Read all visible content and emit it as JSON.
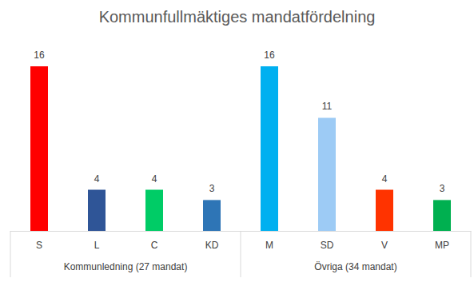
{
  "chart_data": {
    "type": "bar",
    "title": "Kommunfullmäktiges mandatfördelning",
    "categories": [
      "S",
      "L",
      "C",
      "KD",
      "M",
      "SD",
      "V",
      "MP"
    ],
    "values": [
      16,
      4,
      4,
      3,
      16,
      11,
      4,
      3
    ],
    "colors": [
      "#ff0000",
      "#2f5597",
      "#00cc66",
      "#2e75b6",
      "#00b0f0",
      "#9dcbf5",
      "#ff3300",
      "#00b050"
    ],
    "groups": [
      {
        "label": "Kommunledning (27 mandat)",
        "categories": [
          "S",
          "L",
          "C",
          "KD"
        ]
      },
      {
        "label": "Övriga (34 mandat)",
        "categories": [
          "M",
          "SD",
          "V",
          "MP"
        ]
      }
    ],
    "ylim": [
      0,
      16
    ],
    "data_labels": true,
    "tick_labels": "x",
    "grid": false
  }
}
